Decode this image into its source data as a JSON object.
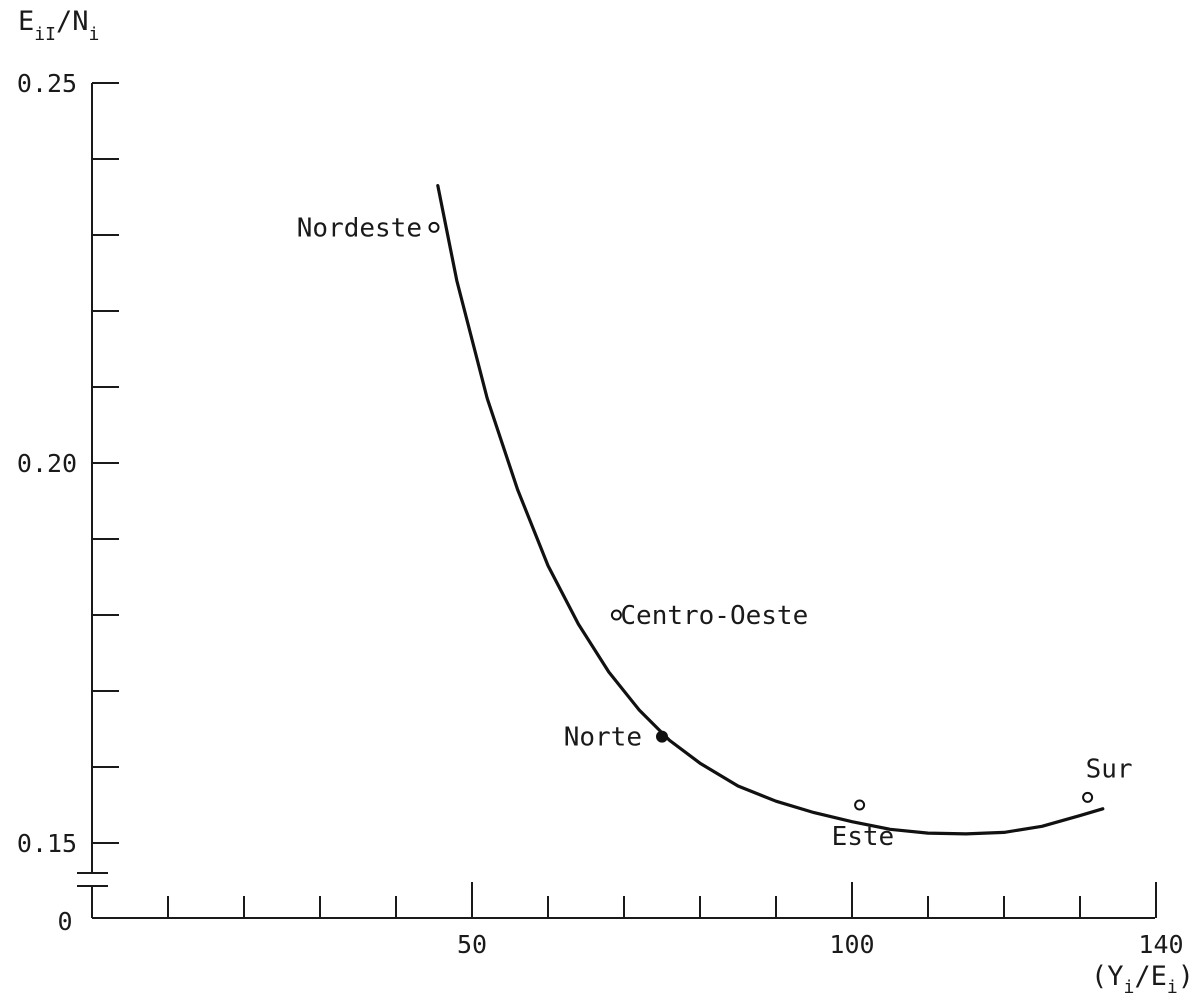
{
  "chart_data": {
    "type": "scatter",
    "title": "",
    "ylabel": {
      "main": "E",
      "sub1": "iI",
      "sep": "/N",
      "sub2": "i"
    },
    "xlabel": {
      "open": "(Y",
      "sub1": "i",
      "sep": "/E",
      "sub2": "i",
      "close": ")"
    },
    "y_tick_labels": [
      "0",
      "0.15",
      "0.20",
      "0.25"
    ],
    "x_tick_labels": [
      "50",
      "100",
      "140"
    ],
    "xlim": [
      0,
      140
    ],
    "ylim": [
      0.145,
      0.25
    ],
    "y_axis_break": true,
    "y_origin_label": "0",
    "points": [
      {
        "label": "Nordeste",
        "x": 45,
        "y": 0.231,
        "filled": false
      },
      {
        "label": "Centro-Oeste",
        "x": 69,
        "y": 0.18,
        "filled": false
      },
      {
        "label": "Norte",
        "x": 75,
        "y": 0.164,
        "filled": true
      },
      {
        "label": "Este",
        "x": 101,
        "y": 0.155,
        "filled": false
      },
      {
        "label": "Sur",
        "x": 131,
        "y": 0.156,
        "filled": false
      }
    ],
    "fitted_curve": {
      "x": [
        45.5,
        48,
        52,
        56,
        60,
        64,
        68,
        72,
        76,
        80,
        85,
        90,
        95,
        100,
        105,
        110,
        115,
        120,
        125,
        130,
        133
      ],
      "y": [
        0.2365,
        0.224,
        0.2085,
        0.1965,
        0.1865,
        0.1788,
        0.1725,
        0.1675,
        0.1635,
        0.1605,
        0.1575,
        0.1555,
        0.154,
        0.1528,
        0.1518,
        0.1513,
        0.1512,
        0.1514,
        0.1522,
        0.1536,
        0.1545
      ]
    }
  }
}
